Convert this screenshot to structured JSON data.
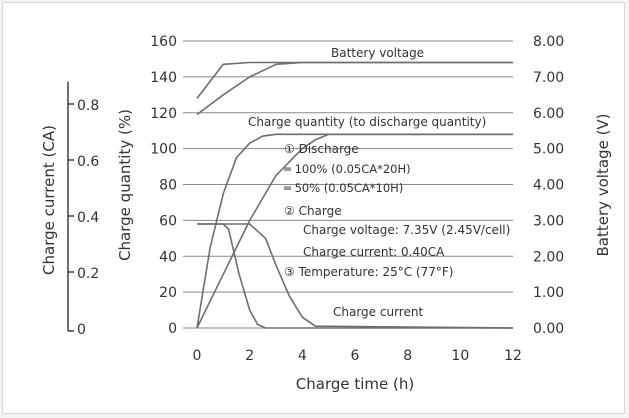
{
  "chart_data": {
    "type": "line",
    "title": "",
    "xlabel": "Charge time (h)",
    "ylabel_left_inner": "Charge quantity (%)",
    "ylabel_left_outer": "Charge current (CA)",
    "ylabel_right": "Battery voltage (V)",
    "x_ticks": [
      "0",
      "2",
      "4",
      "6",
      "8",
      "10",
      "12"
    ],
    "y_ticks_quantity": [
      "0",
      "20",
      "40",
      "60",
      "80",
      "100",
      "120",
      "140",
      "160"
    ],
    "y_ticks_current": [
      "0",
      "0.2",
      "0.4",
      "0.6",
      "0.8"
    ],
    "y_ticks_voltage": [
      "0.00",
      "1.00",
      "2.00",
      "3.00",
      "4.00",
      "5.00",
      "6.00",
      "7.00",
      "8.00"
    ],
    "xlim": [
      0,
      12
    ],
    "ylim_quantity": [
      0,
      160
    ],
    "ylim_current": [
      0,
      0.9
    ],
    "ylim_voltage": [
      0,
      8
    ],
    "grid": true,
    "series": [
      {
        "axis": "voltage",
        "name": "Battery voltage",
        "x": [
          0,
          1,
          2,
          3,
          4,
          12
        ],
        "y": [
          6.4,
          7.35,
          7.4,
          7.4,
          7.4,
          7.4
        ]
      },
      {
        "axis": "voltage",
        "x": [
          0,
          1,
          2,
          3,
          4,
          12
        ],
        "y": [
          5.95,
          6.5,
          7.0,
          7.35,
          7.4,
          7.4
        ]
      },
      {
        "axis": "quantity",
        "name": "Charge quantity (to discharge quantity)",
        "x": [
          0,
          0.5,
          1,
          1.5,
          2,
          2.5,
          3,
          3.5,
          12
        ],
        "y": [
          0,
          45,
          75,
          95,
          103,
          107,
          108,
          108,
          108
        ]
      },
      {
        "axis": "quantity",
        "x": [
          0,
          1,
          2,
          3,
          4,
          4.5,
          5,
          12
        ],
        "y": [
          0,
          30,
          60,
          85,
          100,
          105,
          108,
          108
        ]
      },
      {
        "axis": "quantity",
        "name": "Charge current",
        "x": [
          0,
          1,
          1.2,
          1.6,
          2.0,
          2.3,
          2.6,
          12
        ],
        "y": [
          58,
          58,
          55,
          30,
          10,
          2,
          0,
          0
        ]
      },
      {
        "axis": "quantity",
        "x": [
          0,
          2,
          2.6,
          3,
          3.5,
          4,
          4.5,
          12
        ],
        "y": [
          58,
          58,
          50,
          35,
          18,
          6,
          1,
          0
        ]
      }
    ],
    "annotations": [
      {
        "text": "Battery voltage"
      },
      {
        "text": "Charge quantity (to discharge quantity)"
      },
      {
        "text": "① Discharge"
      },
      {
        "text": "═  100% (0.05CA*20H)"
      },
      {
        "text": "═  50% (0.05CA*10H)"
      },
      {
        "text": "② Charge"
      },
      {
        "text": "Charge voltage: 7.35V (2.45V/cell)"
      },
      {
        "text": "Charge current: 0.40CA"
      },
      {
        "text": "③ Temperature: 25°C (77°F)"
      },
      {
        "text": "Charge current"
      }
    ],
    "colors": {
      "line": "#6e6e6e",
      "grid": "#8a8a8a",
      "text": "#333333"
    }
  }
}
